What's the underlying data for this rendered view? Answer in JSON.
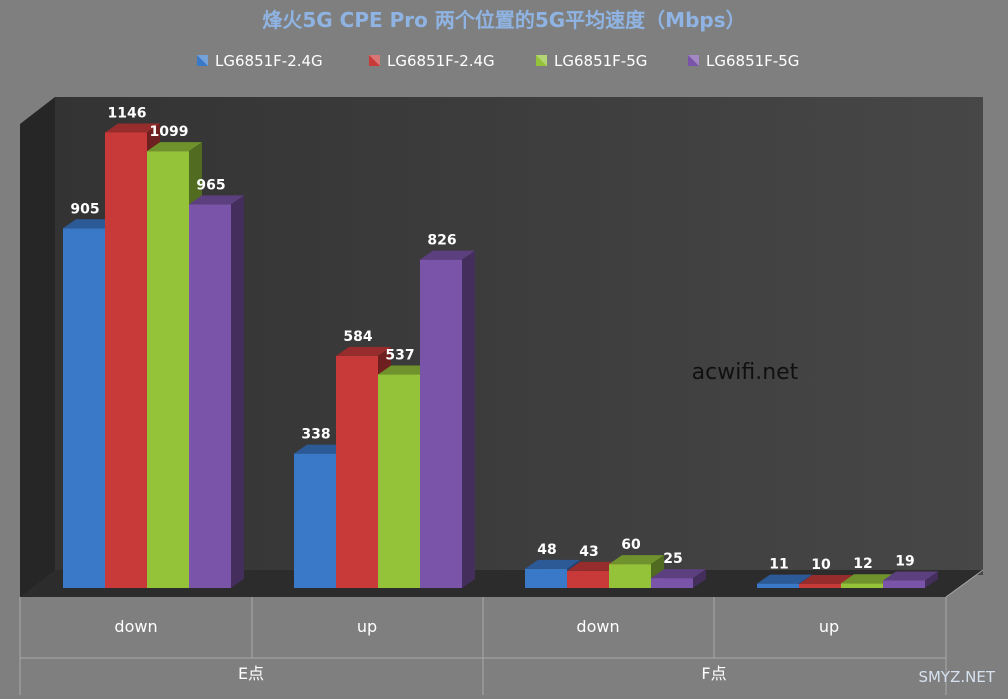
{
  "chart_data": {
    "type": "bar",
    "title": "烽火5G CPE Pro 两个位置的5G平均速度（Mbps）",
    "groups": [
      {
        "label": "E点",
        "categories": [
          "down",
          "up"
        ]
      },
      {
        "label": "F点",
        "categories": [
          "down",
          "up"
        ]
      }
    ],
    "series": [
      {
        "name": "LG6851F-2.4G",
        "color": "#3a78c8",
        "values": [
          905,
          338,
          48,
          11
        ]
      },
      {
        "name": "LG6851F-2.4G",
        "color": "#c83a3a",
        "values": [
          1146,
          584,
          43,
          10
        ]
      },
      {
        "name": "LG6851F-5G",
        "color": "#94c33a",
        "values": [
          1099,
          537,
          60,
          12
        ]
      },
      {
        "name": "LG6851F-5G",
        "color": "#7a54a8",
        "values": [
          965,
          826,
          25,
          19
        ]
      }
    ],
    "ylim": [
      0,
      1200
    ],
    "grid": false,
    "legend_position": "top"
  },
  "watermark": "acwifi.net",
  "corner_watermark": "SMYZ.NET"
}
